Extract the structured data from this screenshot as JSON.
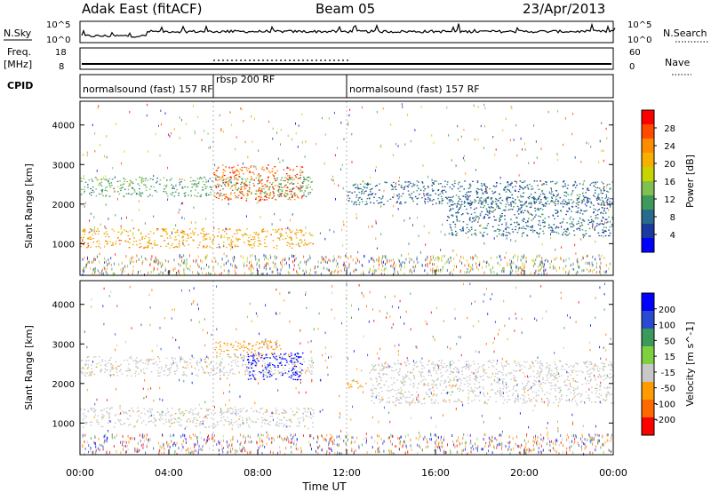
{
  "header": {
    "station": "Adak East (fitACF)",
    "beam": "Beam 05",
    "date": "23/Apr/2013"
  },
  "noise_panel": {
    "left_label": "N.Sky",
    "right_label": "N.Search",
    "left_ticks": [
      "10^5",
      "10^0"
    ],
    "right_ticks": [
      "10^5",
      "10^0"
    ]
  },
  "freq_panel": {
    "left_label_1": "Freq.",
    "left_label_2": "[MHz]",
    "right_label": "Nave",
    "left_ticks": [
      "18",
      "8"
    ],
    "right_ticks": [
      "60",
      "0"
    ]
  },
  "cpid_panel": {
    "label": "CPID",
    "programs": [
      {
        "name": "normalsound (fast) 157 RF",
        "start": 0,
        "end": 6
      },
      {
        "name": "rbsp 200 RF",
        "start": 6,
        "end": 12
      },
      {
        "name": "normalsound (fast) 157 RF",
        "start": 12,
        "end": 24
      }
    ]
  },
  "chart_data": [
    {
      "type": "heatmap",
      "quantity": "Power",
      "ylabel": "Slant Range [km]",
      "ylim": [
        200,
        4600
      ],
      "y_ticks": [
        "1000",
        "2000",
        "3000",
        "4000"
      ],
      "colorbar_label": "Power [dB]",
      "colorbar_ticks": [
        "28",
        "24",
        "20",
        "16",
        "12",
        "8",
        "4"
      ],
      "colorbar_colors": [
        "#ff0000",
        "#ff4a00",
        "#ff8c00",
        "#f5b000",
        "#c8d400",
        "#7fc050",
        "#3d9a5a",
        "#2a6a8a",
        "#1a3aa0",
        "#0000ff"
      ],
      "features": [
        {
          "x_start": 0.0,
          "x_end": 10.5,
          "range_km": [
            900,
            1400
          ],
          "power_db": 20
        },
        {
          "x_start": 0.0,
          "x_end": 10.5,
          "range_km": [
            2200,
            2700
          ],
          "power_db": 10
        },
        {
          "x_start": 6.0,
          "x_end": 10.0,
          "range_km": [
            2100,
            3000
          ],
          "power_db": 24
        },
        {
          "x_start": 12.0,
          "x_end": 24.0,
          "range_km": [
            2000,
            2600
          ],
          "power_db": 6
        },
        {
          "x_start": 16.5,
          "x_end": 24.0,
          "range_km": [
            1200,
            2200
          ],
          "power_db": 6
        }
      ]
    },
    {
      "type": "heatmap",
      "quantity": "Velocity",
      "ylabel": "Slant Range [km]",
      "xlabel": "Time UT",
      "ylim": [
        200,
        4600
      ],
      "y_ticks": [
        "1000",
        "2000",
        "3000",
        "4000"
      ],
      "x_ticks": [
        "00:00",
        "04:00",
        "08:00",
        "12:00",
        "16:00",
        "20:00",
        "00:00"
      ],
      "colorbar_label": "Velocity [m s^-1]",
      "colorbar_ticks": [
        "200",
        "100",
        "50",
        "15",
        "-15",
        "-50",
        "-100",
        "-200"
      ],
      "colorbar_colors": [
        "#0000ff",
        "#2a4ad0",
        "#3a9a5a",
        "#7fd040",
        "#c8c8c8",
        "#ff9a00",
        "#ff6a00",
        "#ff0000"
      ],
      "features": [
        {
          "x_start": 0.0,
          "x_end": 10.5,
          "range_km": [
            900,
            1400
          ],
          "velocity": 0
        },
        {
          "x_start": 0.0,
          "x_end": 10.5,
          "range_km": [
            2200,
            2700
          ],
          "velocity": 0
        },
        {
          "x_start": 7.5,
          "x_end": 10.0,
          "range_km": [
            2100,
            2800
          ],
          "velocity": 200
        },
        {
          "x_start": 6.0,
          "x_end": 9.0,
          "range_km": [
            2700,
            3100
          ],
          "velocity": -50
        },
        {
          "x_start": 12.0,
          "x_end": 13.0,
          "range_km": [
            1900,
            2100
          ],
          "velocity": -50
        },
        {
          "x_start": 13.0,
          "x_end": 24.0,
          "range_km": [
            1500,
            2600
          ],
          "velocity": 0
        }
      ]
    }
  ]
}
